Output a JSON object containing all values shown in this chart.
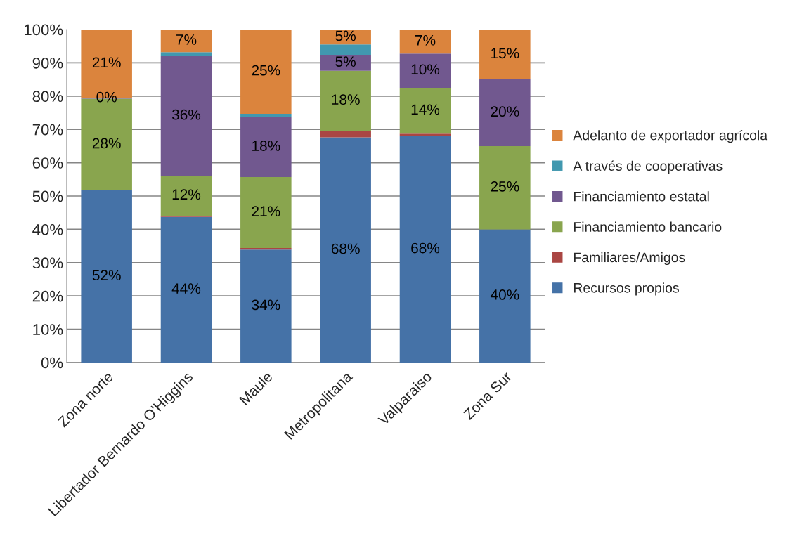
{
  "chart_data": {
    "type": "bar",
    "stacked": true,
    "categories": [
      "Zona norte",
      "Libertador Bernardo O'Higgins",
      "Maule",
      "Metropolitana",
      "Valparaiso",
      "Zona Sur"
    ],
    "series": [
      {
        "name": "Recursos propios",
        "color": "#4572a7",
        "values": [
          51.7,
          43.7,
          33.9,
          67.6,
          68,
          40
        ],
        "value_labels": [
          "52%",
          "44%",
          "34%",
          "68%",
          "68%",
          "40%"
        ]
      },
      {
        "name": "Familiares/Amigos",
        "color": "#aa4643",
        "values": [
          0,
          0.4,
          0.5,
          2,
          0.7,
          0
        ],
        "value_labels": [
          null,
          null,
          null,
          null,
          null,
          null
        ]
      },
      {
        "name": "Financiamiento bancario",
        "color": "#89a54e",
        "values": [
          27.5,
          12,
          21.3,
          18,
          13.8,
          25
        ],
        "value_labels": [
          "28%",
          "12%",
          "21%",
          "18%",
          "14%",
          "25%"
        ]
      },
      {
        "name": "Financiamiento estatal",
        "color": "#71588f",
        "values": [
          0.3,
          35.9,
          18,
          4.8,
          10.3,
          20
        ],
        "value_labels": [
          "0%",
          "36%",
          "18%",
          "5%",
          "10%",
          "20%"
        ]
      },
      {
        "name": "A través de cooperativas",
        "color": "#4198af",
        "values": [
          0,
          1.2,
          1,
          3.1,
          0,
          0
        ],
        "value_labels": [
          null,
          null,
          null,
          null,
          null,
          null
        ]
      },
      {
        "name": "Adelanto de exportador agrícola",
        "color": "#db843d",
        "values": [
          20.5,
          6.8,
          25.3,
          4.5,
          7.2,
          15
        ],
        "value_labels": [
          "21%",
          "7%",
          "25%",
          "5%",
          "7%",
          "15%"
        ]
      }
    ],
    "ylim": [
      0,
      100
    ],
    "yticks": [
      {
        "value": 0,
        "label": "0%"
      },
      {
        "value": 10,
        "label": "10%"
      },
      {
        "value": 20,
        "label": "20%"
      },
      {
        "value": 30,
        "label": "30%"
      },
      {
        "value": 40,
        "label": "40%"
      },
      {
        "value": 50,
        "label": "50%"
      },
      {
        "value": 60,
        "label": "60%"
      },
      {
        "value": 70,
        "label": "70%"
      },
      {
        "value": 80,
        "label": "80%"
      },
      {
        "value": 90,
        "label": "90%"
      },
      {
        "value": 100,
        "label": "100%"
      }
    ],
    "grid": "y",
    "legend": "right"
  }
}
